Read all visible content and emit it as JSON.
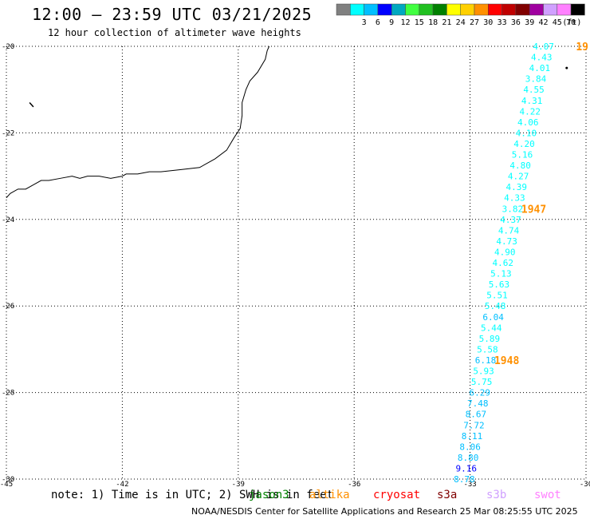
{
  "header": {
    "title": "12:00 – 23:59 UTC 03/21/2025",
    "subtitle": "12 hour collection of altimeter wave heights"
  },
  "colorbar": {
    "unit": "(ft)",
    "swatches": [
      {
        "label": "",
        "color": "#808080"
      },
      {
        "label": "3",
        "color": "#00ffff"
      },
      {
        "label": "6",
        "color": "#00bfff"
      },
      {
        "label": "9",
        "color": "#0000ff"
      },
      {
        "label": "12",
        "color": "#00a8c0"
      },
      {
        "label": "15",
        "color": "#40ff40"
      },
      {
        "label": "18",
        "color": "#20c020"
      },
      {
        "label": "21",
        "color": "#008000"
      },
      {
        "label": "24",
        "color": "#ffff00"
      },
      {
        "label": "27",
        "color": "#ffd000"
      },
      {
        "label": "30",
        "color": "#ff9000"
      },
      {
        "label": "33",
        "color": "#ff0000"
      },
      {
        "label": "36",
        "color": "#c00000"
      },
      {
        "label": "39",
        "color": "#800000"
      },
      {
        "label": "42",
        "color": "#a000a0"
      },
      {
        "label": "45",
        "color": "#d0a0ff"
      },
      {
        "label": "70",
        "color": "#ff80ff"
      },
      {
        "label": "",
        "color": "#000000"
      }
    ]
  },
  "map": {
    "lon_range": [
      -45,
      -30
    ],
    "lat_range": [
      -30,
      -20
    ],
    "x_ticks": [
      {
        "value": -45,
        "label": "-45"
      },
      {
        "value": -42,
        "label": "-42"
      },
      {
        "value": -39,
        "label": "-39"
      },
      {
        "value": -36,
        "label": "-36"
      },
      {
        "value": -33,
        "label": "-33"
      },
      {
        "value": -30,
        "label": "-30"
      }
    ],
    "y_ticks": [
      {
        "value": -20,
        "label": "-20"
      },
      {
        "value": -22,
        "label": "-22"
      },
      {
        "value": -24,
        "label": "-24"
      },
      {
        "value": -26,
        "label": "-26"
      },
      {
        "value": -28,
        "label": "-28"
      },
      {
        "value": -30,
        "label": "-30"
      }
    ],
    "grid": true,
    "coastline_points": [
      [
        -38.2,
        -20.0
      ],
      [
        -38.25,
        -20.1
      ],
      [
        -38.3,
        -20.3
      ],
      [
        -38.5,
        -20.6
      ],
      [
        -38.7,
        -20.8
      ],
      [
        -38.8,
        -21.0
      ],
      [
        -38.9,
        -21.3
      ],
      [
        -38.9,
        -21.6
      ],
      [
        -38.95,
        -21.9
      ],
      [
        -39.1,
        -22.1
      ],
      [
        -39.3,
        -22.4
      ],
      [
        -39.6,
        -22.6
      ],
      [
        -40.0,
        -22.8
      ],
      [
        -40.5,
        -22.85
      ],
      [
        -41.0,
        -22.9
      ],
      [
        -41.3,
        -22.9
      ],
      [
        -41.6,
        -22.95
      ],
      [
        -41.9,
        -22.95
      ],
      [
        -42.0,
        -23.0
      ],
      [
        -42.3,
        -23.05
      ],
      [
        -42.6,
        -23.0
      ],
      [
        -42.9,
        -23.0
      ],
      [
        -43.1,
        -23.05
      ],
      [
        -43.3,
        -23.0
      ],
      [
        -43.6,
        -23.05
      ],
      [
        -43.9,
        -23.1
      ],
      [
        -44.1,
        -23.1
      ],
      [
        -44.3,
        -23.2
      ],
      [
        -44.5,
        -23.3
      ],
      [
        -44.7,
        -23.3
      ],
      [
        -44.9,
        -23.4
      ],
      [
        -45.0,
        -23.5
      ]
    ],
    "island_points": [
      [
        -44.4,
        -21.3
      ],
      [
        -44.3,
        -21.4
      ]
    ],
    "black_dot": {
      "lon": -30.5,
      "lat": -20.5
    },
    "tracks": [
      {
        "lat": -20.0,
        "lon": -31.1,
        "value": "4.07",
        "color": "#00ffff"
      },
      {
        "lat": -20.25,
        "lon": -31.15,
        "value": "4.43",
        "color": "#00ffff"
      },
      {
        "lat": -20.5,
        "lon": -31.2,
        "value": "4.01",
        "color": "#00ffff"
      },
      {
        "lat": -20.75,
        "lon": -31.3,
        "value": "3.84",
        "color": "#00ffff"
      },
      {
        "lat": -21.0,
        "lon": -31.35,
        "value": "4.55",
        "color": "#00ffff"
      },
      {
        "lat": -21.25,
        "lon": -31.4,
        "value": "4.31",
        "color": "#00ffff"
      },
      {
        "lat": -21.5,
        "lon": -31.45,
        "value": "4.22",
        "color": "#00ffff"
      },
      {
        "lat": -21.75,
        "lon": -31.5,
        "value": "4.06",
        "color": "#00ffff"
      },
      {
        "lat": -22.0,
        "lon": -31.55,
        "value": "4.10",
        "color": "#00ffff"
      },
      {
        "lat": -22.25,
        "lon": -31.6,
        "value": "4.20",
        "color": "#00ffff"
      },
      {
        "lat": -22.5,
        "lon": -31.65,
        "value": "5.16",
        "color": "#00ffff"
      },
      {
        "lat": -22.75,
        "lon": -31.7,
        "value": "4.80",
        "color": "#00ffff"
      },
      {
        "lat": -23.0,
        "lon": -31.75,
        "value": "4.27",
        "color": "#00ffff"
      },
      {
        "lat": -23.25,
        "lon": -31.8,
        "value": "4.39",
        "color": "#00ffff"
      },
      {
        "lat": -23.5,
        "lon": -31.85,
        "value": "4.33",
        "color": "#00ffff"
      },
      {
        "lat": -23.75,
        "lon": -31.9,
        "value": "3.82",
        "color": "#00ffff"
      },
      {
        "lat": -24.0,
        "lon": -31.95,
        "value": "4.37",
        "color": "#00ffff"
      },
      {
        "lat": -24.25,
        "lon": -32.0,
        "value": "4.74",
        "color": "#00ffff"
      },
      {
        "lat": -24.5,
        "lon": -32.05,
        "value": "4.73",
        "color": "#00ffff"
      },
      {
        "lat": -24.75,
        "lon": -32.1,
        "value": "4.90",
        "color": "#00ffff"
      },
      {
        "lat": -25.0,
        "lon": -32.15,
        "value": "4.62",
        "color": "#00ffff"
      },
      {
        "lat": -25.25,
        "lon": -32.2,
        "value": "5.13",
        "color": "#00ffff"
      },
      {
        "lat": -25.5,
        "lon": -32.25,
        "value": "5.63",
        "color": "#00ffff"
      },
      {
        "lat": -25.75,
        "lon": -32.3,
        "value": "5.51",
        "color": "#00ffff"
      },
      {
        "lat": -26.0,
        "lon": -32.35,
        "value": "5.48",
        "color": "#00ffff"
      },
      {
        "lat": -26.25,
        "lon": -32.4,
        "value": "6.04",
        "color": "#00bfff"
      },
      {
        "lat": -26.5,
        "lon": -32.45,
        "value": "5.44",
        "color": "#00ffff"
      },
      {
        "lat": -26.75,
        "lon": -32.5,
        "value": "5.89",
        "color": "#00ffff"
      },
      {
        "lat": -27.0,
        "lon": -32.55,
        "value": "5.58",
        "color": "#00ffff"
      },
      {
        "lat": -27.25,
        "lon": -32.6,
        "value": "6.18",
        "color": "#00bfff"
      },
      {
        "lat": -27.5,
        "lon": -32.65,
        "value": "5.93",
        "color": "#00ffff"
      },
      {
        "lat": -27.75,
        "lon": -32.7,
        "value": "5.75",
        "color": "#00ffff"
      },
      {
        "lat": -28.0,
        "lon": -32.75,
        "value": "6.29",
        "color": "#00bfff"
      },
      {
        "lat": -28.25,
        "lon": -32.8,
        "value": "7.48",
        "color": "#00bfff"
      },
      {
        "lat": -28.5,
        "lon": -32.85,
        "value": "8.67",
        "color": "#00bfff"
      },
      {
        "lat": -28.75,
        "lon": -32.9,
        "value": "7.72",
        "color": "#00bfff"
      },
      {
        "lat": -29.0,
        "lon": -32.95,
        "value": "8.11",
        "color": "#00bfff"
      },
      {
        "lat": -29.25,
        "lon": -33.0,
        "value": "8.06",
        "color": "#00bfff"
      },
      {
        "lat": -29.5,
        "lon": -33.05,
        "value": "8.80",
        "color": "#00bfff"
      },
      {
        "lat": -29.75,
        "lon": -33.1,
        "value": "9.16",
        "color": "#0000ff"
      },
      {
        "lat": -30.0,
        "lon": -33.15,
        "value": "8.78",
        "color": "#00bfff"
      }
    ],
    "time_labels": [
      {
        "lat": -20.0,
        "lon": -30.1,
        "text": "19",
        "color": "#ff9000"
      },
      {
        "lat": -23.75,
        "lon": -31.35,
        "text": "1947",
        "color": "#ff9000"
      },
      {
        "lat": -27.25,
        "lon": -32.05,
        "text": "1948",
        "color": "#ff9000"
      }
    ]
  },
  "note": "note: 1) Time is in UTC; 2) SWH is in feet",
  "satellites": [
    {
      "name": "jason3",
      "color": "#008000"
    },
    {
      "name": "altika",
      "color": "#ff9000"
    },
    {
      "name": "cryosat",
      "color": "#ff0000"
    },
    {
      "name": "s3a",
      "color": "#800000"
    },
    {
      "name": "s3b",
      "color": "#d0a0ff"
    },
    {
      "name": "swot",
      "color": "#ff80ff"
    }
  ],
  "footer": "NOAA/NESDIS Center for Satellite Applications and Research    25 Mar 08:25:55 UTC 2025"
}
